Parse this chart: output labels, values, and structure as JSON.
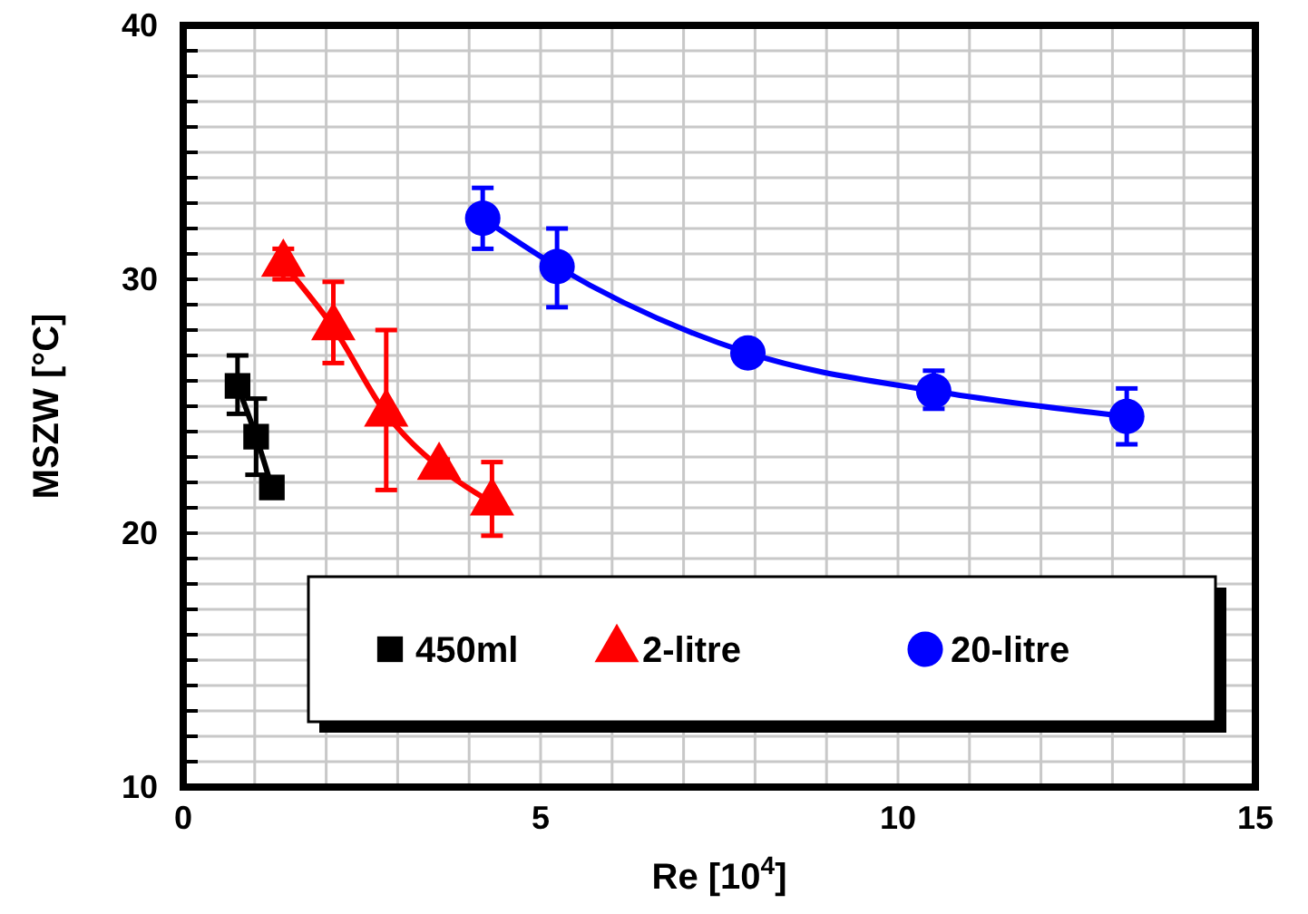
{
  "chart_data": {
    "type": "line",
    "xlabel": "Re [10$^{4}$]",
    "ylabel": "MSZW [°C]",
    "xlim": [
      0,
      15
    ],
    "ylim": [
      10,
      40
    ],
    "xticks": [
      0,
      {
        "value": 1,
        "label": null
      },
      {
        "value": 2,
        "label": null
      },
      {
        "value": 3,
        "label": null
      },
      {
        "value": 4,
        "label": null
      },
      5,
      {
        "value": 6,
        "label": null
      },
      {
        "value": 7,
        "label": null
      },
      {
        "value": 8,
        "label": null
      },
      {
        "value": 9,
        "label": null
      },
      10,
      {
        "value": 11,
        "label": null
      },
      {
        "value": 12,
        "label": null
      },
      {
        "value": 13,
        "label": null
      },
      {
        "value": 14,
        "label": null
      },
      15
    ],
    "yticks": [
      10,
      {
        "value": 11,
        "label": null
      },
      {
        "value": 12,
        "label": null
      },
      {
        "value": 13,
        "label": null
      },
      {
        "value": 14,
        "label": null
      },
      {
        "value": 15,
        "label": null
      },
      {
        "value": 16,
        "label": null
      },
      {
        "value": 17,
        "label": null
      },
      {
        "value": 18,
        "label": null
      },
      {
        "value": 19,
        "label": null
      },
      20,
      {
        "value": 21,
        "label": null
      },
      {
        "value": 22,
        "label": null
      },
      {
        "value": 23,
        "label": null
      },
      {
        "value": 24,
        "label": null
      },
      {
        "value": 25,
        "label": null
      },
      {
        "value": 26,
        "label": null
      },
      {
        "value": 27,
        "label": null
      },
      {
        "value": 28,
        "label": null
      },
      {
        "value": 29,
        "label": null
      },
      30,
      {
        "value": 31,
        "label": null
      },
      {
        "value": 32,
        "label": null
      },
      {
        "value": 33,
        "label": null
      },
      {
        "value": 34,
        "label": null
      },
      {
        "value": 35,
        "label": null
      },
      {
        "value": 36,
        "label": null
      },
      {
        "value": 37,
        "label": null
      },
      {
        "value": 38,
        "label": null
      },
      {
        "value": 39,
        "label": null
      },
      40
    ],
    "grid": true,
    "legend": "bottom",
    "line_style": "solid",
    "series": [
      {
        "name": "450ml",
        "marker": "square",
        "color": "#000000",
        "x": [
          0.76,
          1.02,
          1.24
        ],
        "values": [
          25.8,
          23.8,
          21.8
        ],
        "errors": [
          [
            24.7,
            27.0
          ],
          [
            22.3,
            25.3
          ],
          null
        ]
      },
      {
        "name": "2-litre",
        "marker": "triangle",
        "color": "#ff0000",
        "x": [
          1.4,
          2.1,
          2.84,
          3.58,
          4.32
        ],
        "values": [
          30.6,
          28.1,
          24.7,
          22.6,
          21.2
        ],
        "errors": [
          [
            30.0,
            31.2
          ],
          [
            26.7,
            29.9
          ],
          [
            21.7,
            28.0
          ],
          [
            22.3,
            22.9
          ],
          [
            19.9,
            22.8
          ]
        ]
      },
      {
        "name": "20-litre",
        "marker": "circle",
        "color": "#0000ff",
        "x": [
          4.19,
          5.23,
          7.9,
          10.5,
          13.2
        ],
        "values": [
          32.4,
          30.5,
          27.1,
          25.6,
          24.6
        ],
        "errors": [
          [
            31.2,
            33.6
          ],
          [
            28.9,
            32.0
          ],
          null,
          [
            24.9,
            26.4
          ],
          [
            23.5,
            25.7
          ]
        ]
      }
    ]
  }
}
